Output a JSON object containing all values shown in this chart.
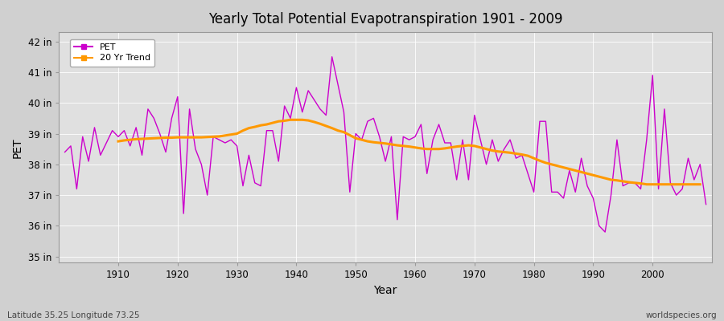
{
  "title": "Yearly Total Potential Evapotranspiration 1901 - 2009",
  "xlabel": "Year",
  "ylabel": "PET",
  "bottom_left_text": "Latitude 35.25 Longitude 73.25",
  "bottom_right_text": "worldspecies.org",
  "pet_color": "#cc00cc",
  "trend_color": "#ff9900",
  "background_color": "#e0e0e0",
  "grid_color": "#ffffff",
  "ylim": [
    34.8,
    42.3
  ],
  "xlim": [
    1900,
    2010
  ],
  "yticks": [
    35,
    36,
    37,
    38,
    39,
    40,
    41,
    42
  ],
  "ytick_labels": [
    "35 in",
    "36 in",
    "37 in",
    "38 in",
    "39 in",
    "40 in",
    "41 in",
    "42 in"
  ],
  "xticks": [
    1910,
    1920,
    1930,
    1940,
    1950,
    1960,
    1970,
    1980,
    1990,
    2000
  ],
  "years": [
    1901,
    1902,
    1903,
    1904,
    1905,
    1906,
    1907,
    1908,
    1909,
    1910,
    1911,
    1912,
    1913,
    1914,
    1915,
    1916,
    1917,
    1918,
    1919,
    1920,
    1921,
    1922,
    1923,
    1924,
    1925,
    1926,
    1927,
    1928,
    1929,
    1930,
    1931,
    1932,
    1933,
    1934,
    1935,
    1936,
    1937,
    1938,
    1939,
    1940,
    1941,
    1942,
    1943,
    1944,
    1945,
    1946,
    1947,
    1948,
    1949,
    1950,
    1951,
    1952,
    1953,
    1954,
    1955,
    1956,
    1957,
    1958,
    1959,
    1960,
    1961,
    1962,
    1963,
    1964,
    1965,
    1966,
    1967,
    1968,
    1969,
    1970,
    1971,
    1972,
    1973,
    1974,
    1975,
    1976,
    1977,
    1978,
    1979,
    1980,
    1981,
    1982,
    1983,
    1984,
    1985,
    1986,
    1987,
    1988,
    1989,
    1990,
    1991,
    1992,
    1993,
    1994,
    1995,
    1996,
    1997,
    1998,
    1999,
    2000,
    2001,
    2002,
    2003,
    2004,
    2005,
    2006,
    2007,
    2008,
    2009
  ],
  "pet_values": [
    38.4,
    38.6,
    37.2,
    38.9,
    38.1,
    39.2,
    38.3,
    38.7,
    39.1,
    38.9,
    39.1,
    38.6,
    39.2,
    38.3,
    39.8,
    39.5,
    39.0,
    38.4,
    39.5,
    40.2,
    36.4,
    39.8,
    38.5,
    38.0,
    37.0,
    38.9,
    38.8,
    38.7,
    38.8,
    38.6,
    37.3,
    38.3,
    37.4,
    37.3,
    39.1,
    39.1,
    38.1,
    39.9,
    39.5,
    40.5,
    39.7,
    40.4,
    40.1,
    39.8,
    39.6,
    41.5,
    40.6,
    39.7,
    37.1,
    39.0,
    38.8,
    39.4,
    39.5,
    38.9,
    38.1,
    38.9,
    36.2,
    38.9,
    38.8,
    38.9,
    39.3,
    37.7,
    38.8,
    39.3,
    38.7,
    38.7,
    37.5,
    38.8,
    37.5,
    39.6,
    38.8,
    38.0,
    38.8,
    38.1,
    38.5,
    38.8,
    38.2,
    38.3,
    37.7,
    37.1,
    39.4,
    39.4,
    37.1,
    37.1,
    36.9,
    37.8,
    37.1,
    38.2,
    37.3,
    36.9,
    36.0,
    35.8,
    37.0,
    38.8,
    37.3,
    37.4,
    37.4,
    37.2,
    38.8,
    40.9,
    37.2,
    39.8,
    37.4,
    37.0,
    37.2,
    38.2,
    37.5,
    38.0,
    36.7
  ],
  "trend_start_year": 1910,
  "trend_values": [
    38.75,
    38.78,
    38.8,
    38.82,
    38.83,
    38.84,
    38.85,
    38.86,
    38.87,
    38.87,
    38.88,
    38.88,
    38.88,
    38.88,
    38.88,
    38.89,
    38.9,
    38.91,
    38.94,
    38.97,
    39.0,
    39.1,
    39.18,
    39.22,
    39.27,
    39.3,
    39.35,
    39.4,
    39.42,
    39.45,
    39.45,
    39.45,
    39.43,
    39.38,
    39.32,
    39.25,
    39.18,
    39.1,
    39.05,
    38.95,
    38.85,
    38.8,
    38.75,
    38.72,
    38.7,
    38.68,
    38.65,
    38.62,
    38.6,
    38.58,
    38.55,
    38.52,
    38.5,
    38.5,
    38.5,
    38.52,
    38.55,
    38.58,
    38.6,
    38.62,
    38.6,
    38.55,
    38.5,
    38.45,
    38.42,
    38.4,
    38.38,
    38.35,
    38.32,
    38.28,
    38.2,
    38.12,
    38.05,
    38.0,
    37.95,
    37.9,
    37.85,
    37.8,
    37.75,
    37.7,
    37.65,
    37.6,
    37.55,
    37.5,
    37.48,
    37.45,
    37.42,
    37.4,
    37.38,
    37.35,
    37.35,
    37.35,
    37.35,
    37.35,
    37.35,
    37.35,
    37.35,
    37.35,
    37.35
  ]
}
